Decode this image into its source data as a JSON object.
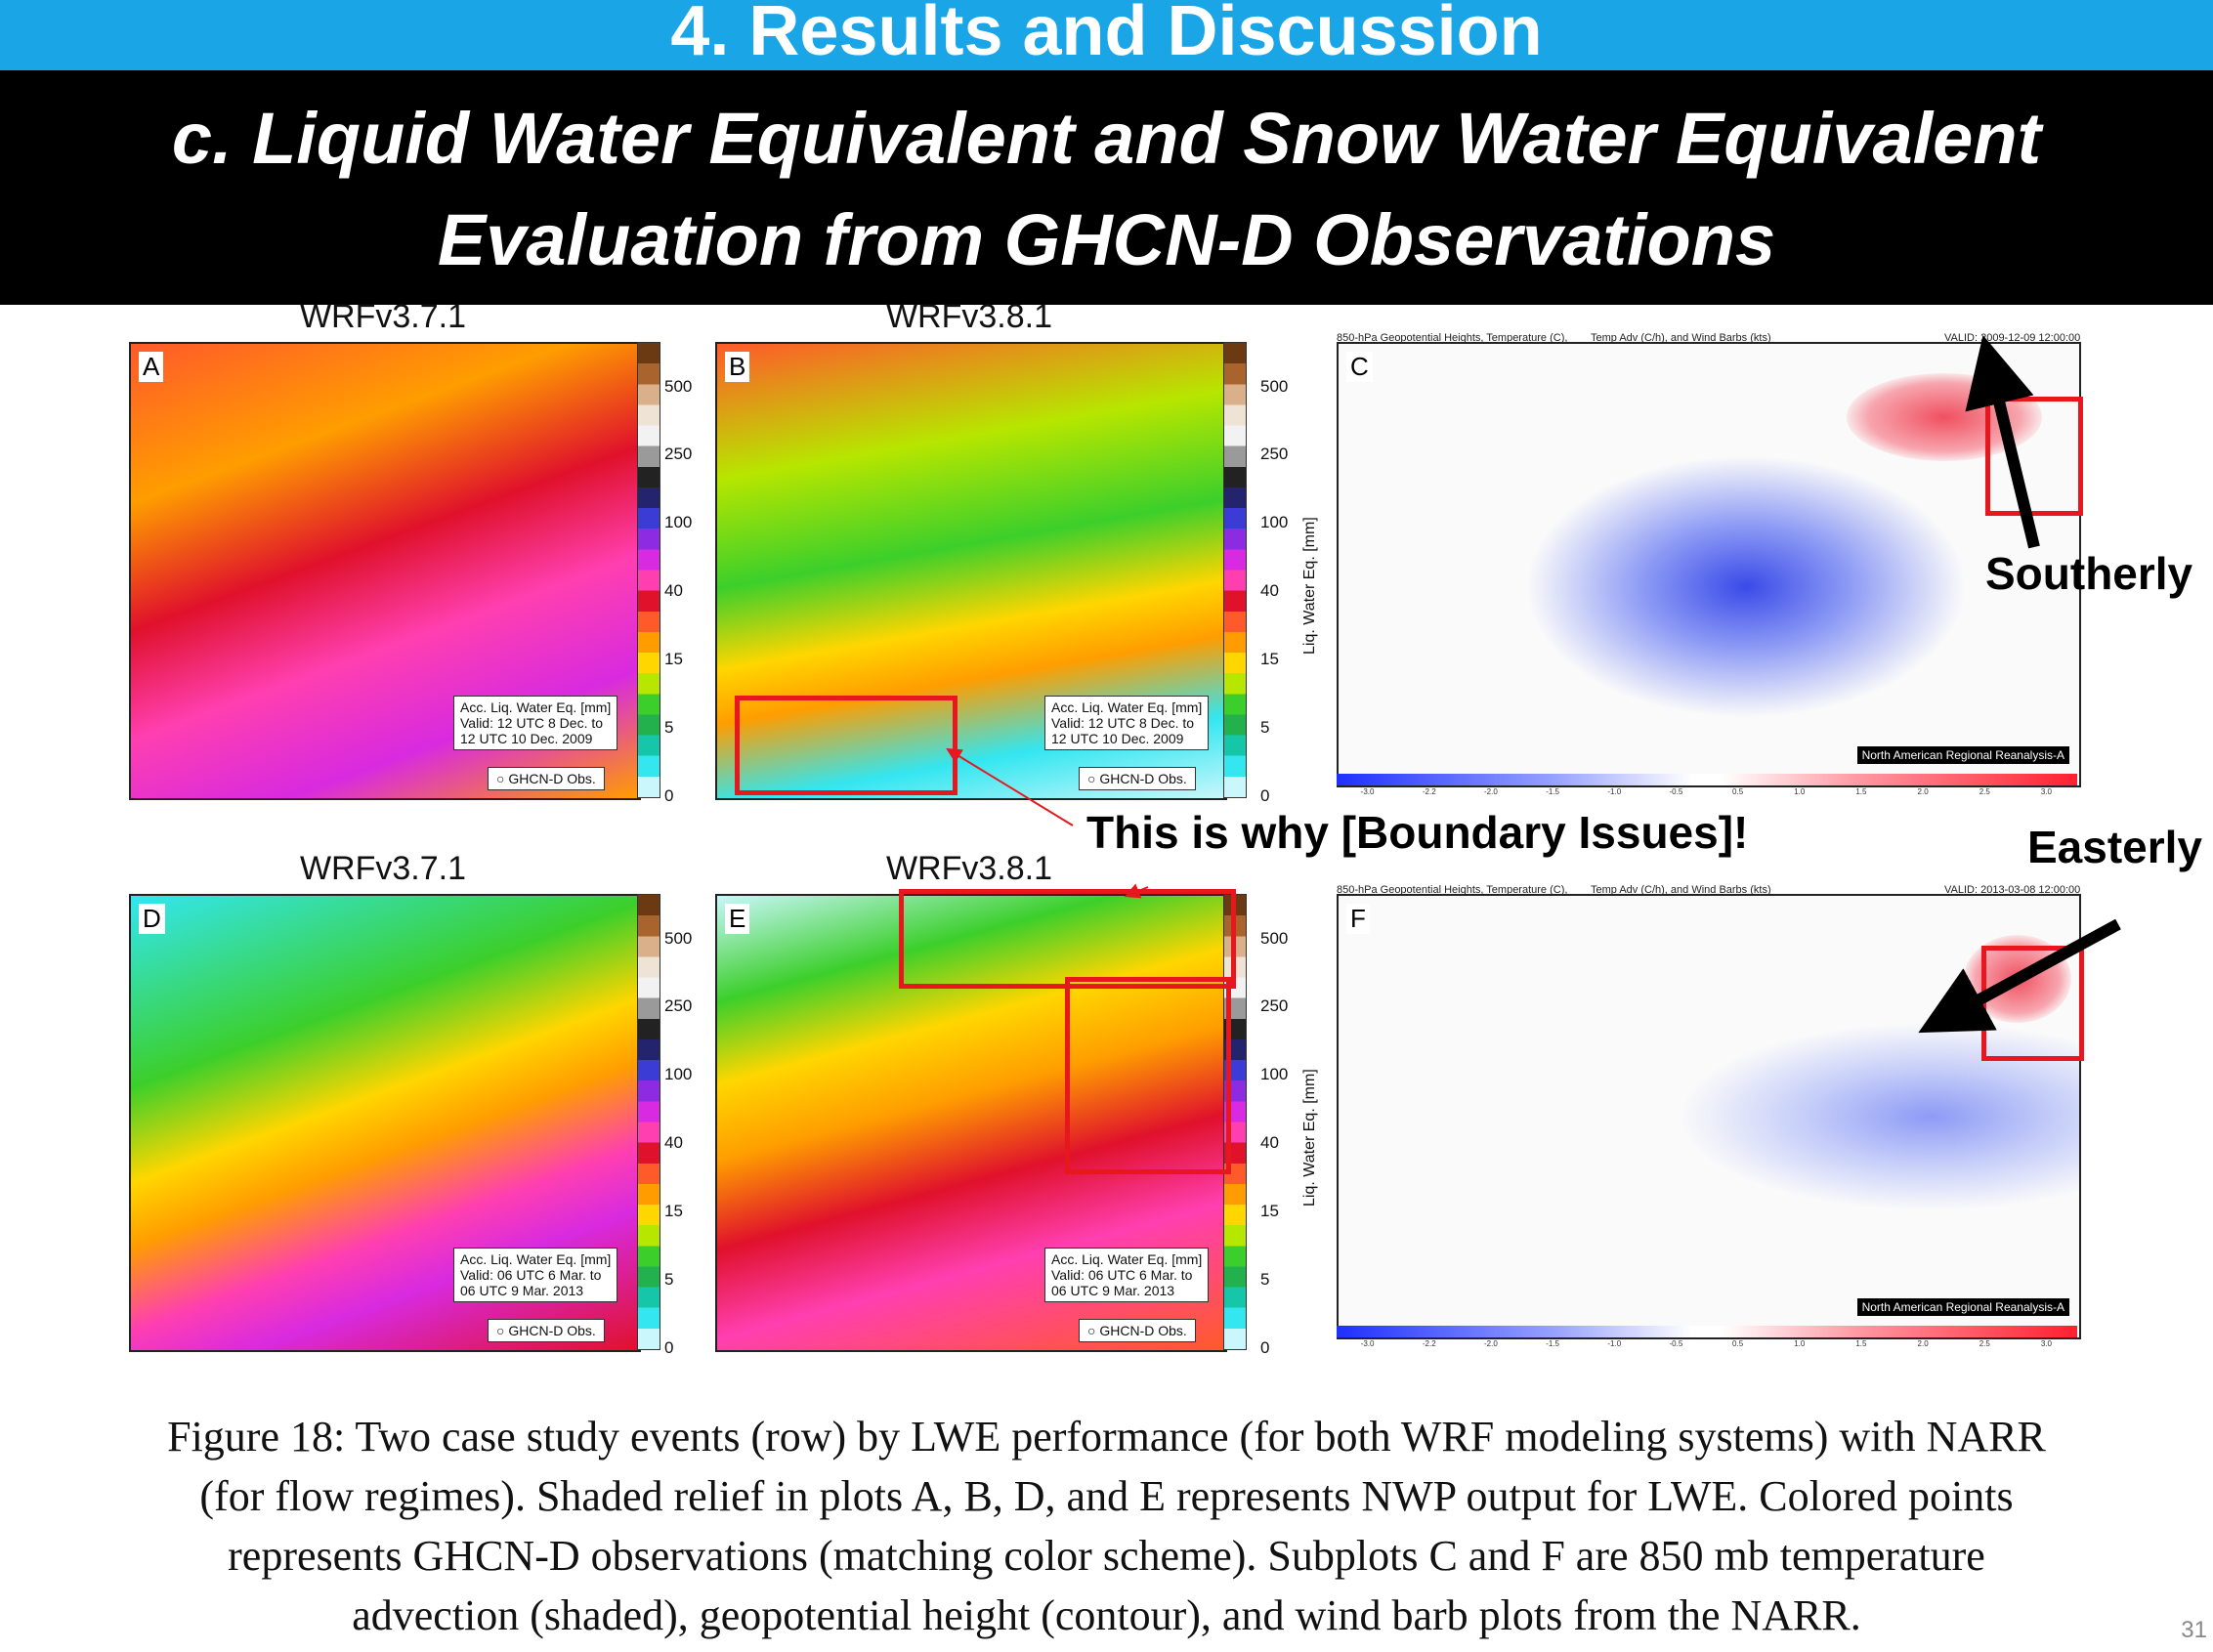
{
  "header": {
    "section_title": "4. Results and Discussion",
    "subtitle_line1": "c. Liquid Water Equivalent and Snow Water Equivalent",
    "subtitle_line2": "Evaluation from GHCN-D Observations"
  },
  "panels": {
    "A": {
      "title": "WRFv3.7.1",
      "label": "A",
      "legend_l1": "Acc. Liq. Water Eq. [mm]",
      "legend_l2": "Valid: 12 UTC 8 Dec. to",
      "legend_l3": "12 UTC 10 Dec. 2009",
      "obs": "GHCN-D Obs."
    },
    "B": {
      "title": "WRFv3.8.1",
      "label": "B",
      "legend_l1": "Acc. Liq. Water Eq. [mm]",
      "legend_l2": "Valid: 12 UTC 8 Dec. to",
      "legend_l3": "12 UTC 10 Dec. 2009",
      "obs": "GHCN-D Obs."
    },
    "D": {
      "title": "WRFv3.7.1",
      "label": "D",
      "legend_l1": "Acc. Liq. Water Eq. [mm]",
      "legend_l2": "Valid: 06 UTC 6 Mar. to",
      "legend_l3": "06 UTC 9 Mar. 2013",
      "obs": "GHCN-D Obs."
    },
    "E": {
      "title": "WRFv3.8.1",
      "label": "E",
      "legend_l1": "Acc. Liq. Water Eq. [mm]",
      "legend_l2": "Valid: 06 UTC 6 Mar. to",
      "legend_l3": "06 UTC 9 Mar. 2013",
      "obs": "GHCN-D Obs."
    },
    "C": {
      "label": "C",
      "hdr_left": "850-hPa Geopotential Heights, Temperature (C),",
      "hdr_mid": "Temp Adv (C/h), and Wind Barbs (kts)",
      "hdr_right": "VALID: 2009-12-09 12:00:00",
      "footer": "North American Regional Reanalysis-A"
    },
    "F": {
      "label": "F",
      "hdr_left": "850-hPa Geopotential Heights, Temperature (C),",
      "hdr_mid": "Temp Adv (C/h), and Wind Barbs (kts)",
      "hdr_right": "VALID: 2013-03-08 12:00:00",
      "footer": "North American Regional Reanalysis-A"
    }
  },
  "colorbar": {
    "label": "Liq. Water Eq. [mm]",
    "ticks": [
      "500",
      "250",
      "100",
      "40",
      "15",
      "5",
      "0"
    ],
    "colors": [
      "#6b3a12",
      "#a8642c",
      "#d9b08a",
      "#efe3d6",
      "#f2f2f2",
      "#9a9a9a",
      "#222222",
      "#24246e",
      "#3b3bd6",
      "#8c2be2",
      "#d82ae0",
      "#ff3fb0",
      "#e0112b",
      "#ff5a2a",
      "#ff9d00",
      "#ffd600",
      "#b7e600",
      "#3ccf2b",
      "#22b14c",
      "#16c6a8",
      "#33e6f0",
      "#c9f7fb"
    ]
  },
  "narr_scale": {
    "ticks": [
      "-3.0",
      "-2.2",
      "-2.0",
      "-1.5",
      "-1.0",
      "-0.5",
      "0.5",
      "1.0",
      "1.5",
      "2.0",
      "2.5",
      "3.0"
    ]
  },
  "annotations": {
    "southerly": "Southerly",
    "easterly": "Easterly",
    "boundary": "This is why [Boundary Issues]!"
  },
  "caption": {
    "line1": "Figure 18: Two case study events (row) by LWE performance (for both WRF modeling systems) with NARR",
    "line2": "(for flow regimes). Shaded relief in plots A, B, D, and E represents NWP output for LWE. Colored points",
    "line3": "represents GHCN-D observations (matching color scheme). Subplots C and F are 850 mb temperature",
    "line4": "advection (shaded), geopotential height (contour), and wind barb plots from the NARR."
  },
  "page_number": "31"
}
